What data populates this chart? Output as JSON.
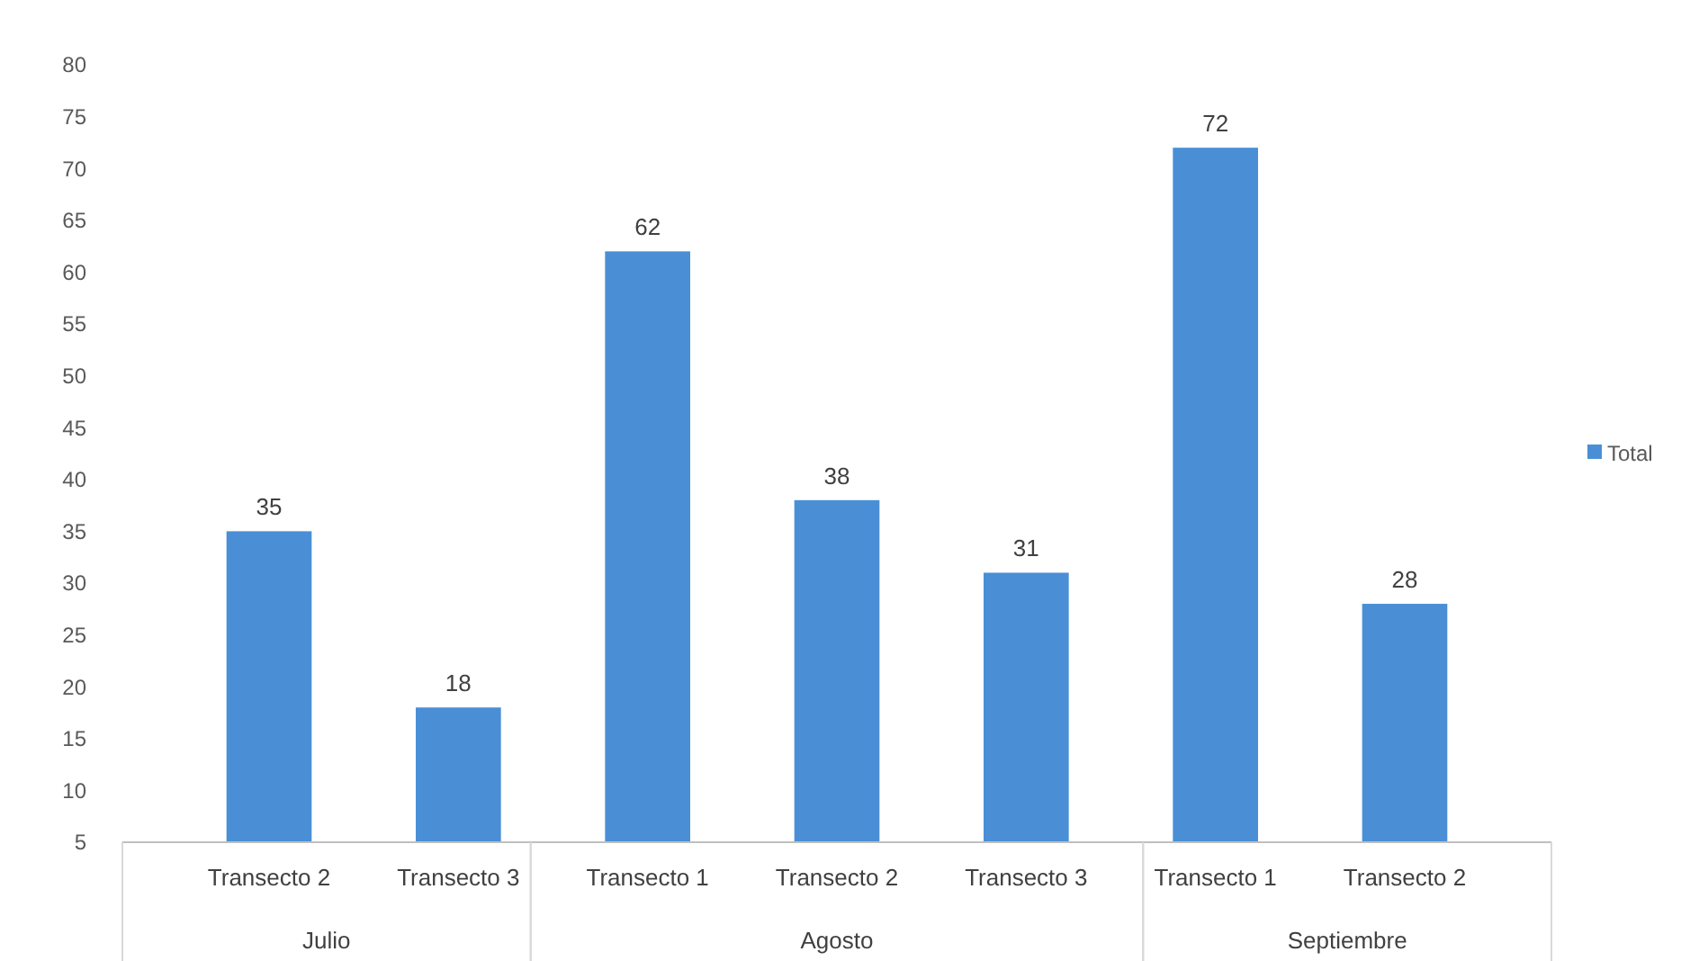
{
  "chart_data": {
    "type": "bar",
    "categories": [
      "Transecto 2",
      "Transecto 3",
      "Transecto 1",
      "Transecto 2",
      "Transecto 3",
      "Transecto 1",
      "Transecto 2"
    ],
    "series": [
      {
        "name": "Total",
        "color": "#4a8fd6",
        "values": [
          35,
          18,
          62,
          38,
          31,
          72,
          28
        ]
      }
    ],
    "ylim": [
      5,
      80
    ],
    "yticks": [
      5,
      10,
      15,
      20,
      25,
      30,
      35,
      40,
      45,
      50,
      55,
      60,
      65,
      70,
      75,
      80
    ],
    "data_labels": true,
    "grid": false,
    "legend": "right",
    "annotations": [
      "Julio",
      "Agosto",
      "Septiembre"
    ]
  }
}
